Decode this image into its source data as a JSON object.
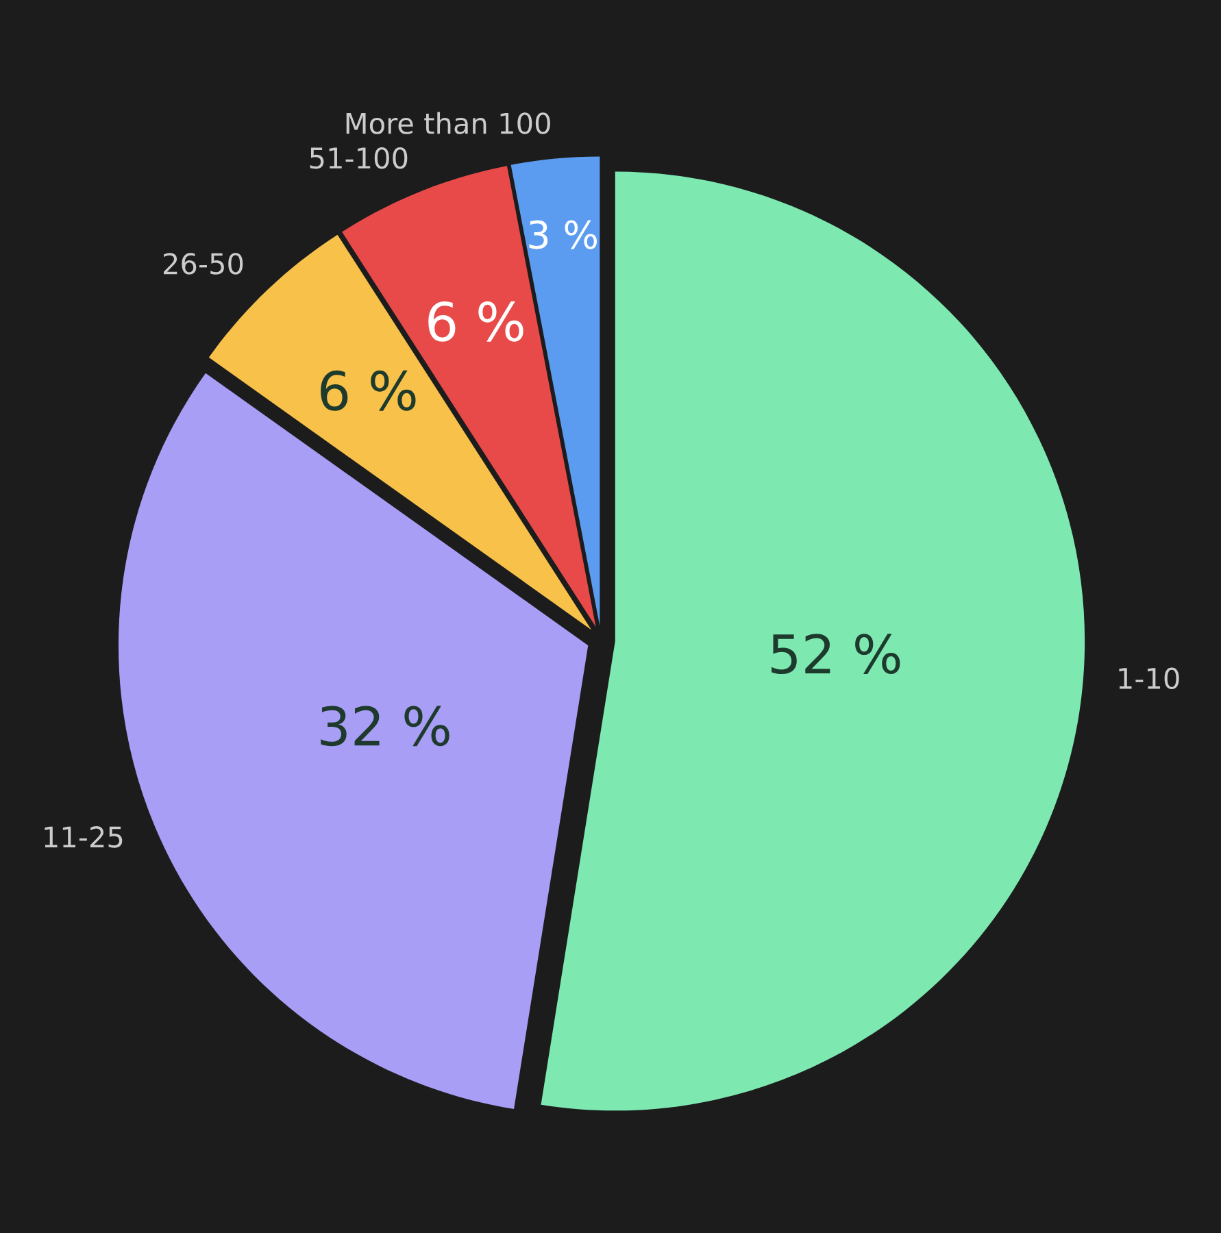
{
  "chart_data": {
    "type": "pie",
    "categories": [
      "1-10",
      "11-25",
      "26-50",
      "51-100",
      "More than 100"
    ],
    "values": [
      52,
      32,
      6,
      6,
      3
    ],
    "colors": [
      "#7de8b0",
      "#a89ef5",
      "#f7c14a",
      "#e84a4a",
      "#5b9cf0"
    ],
    "value_labels": [
      "52 %",
      "32 %",
      "6 %",
      "6 %",
      "3 %"
    ]
  }
}
